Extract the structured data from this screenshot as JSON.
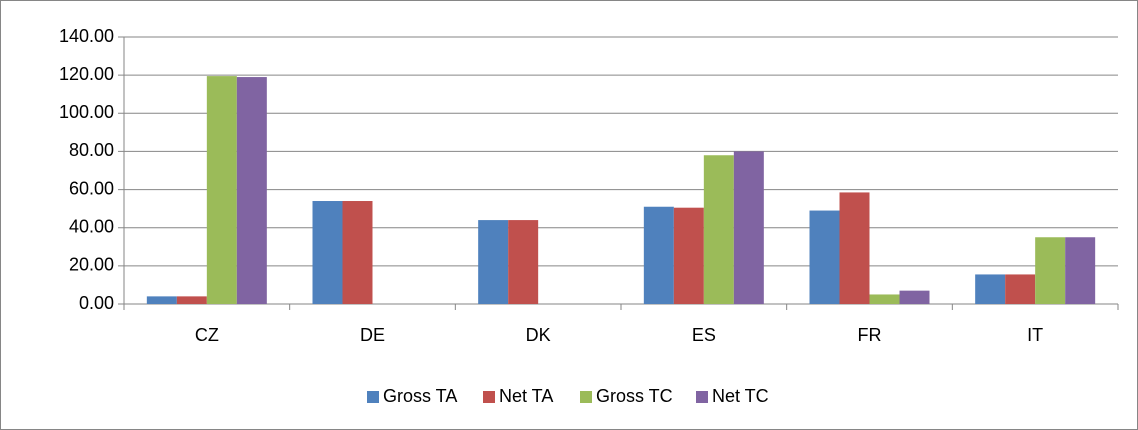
{
  "chart_data": {
    "type": "bar",
    "categories": [
      "CZ",
      "DE",
      "DK",
      "ES",
      "FR",
      "IT"
    ],
    "series": [
      {
        "name": "Gross TA",
        "color": "#4f81bd",
        "values": [
          4,
          54,
          44,
          51,
          49,
          15.5
        ]
      },
      {
        "name": "Net TA",
        "color": "#c0504d",
        "values": [
          4,
          54,
          44,
          50.5,
          58.5,
          15.5
        ]
      },
      {
        "name": "Gross TC",
        "color": "#9bbb59",
        "values": [
          119.5,
          null,
          null,
          78,
          5,
          35
        ]
      },
      {
        "name": "Net TC",
        "color": "#8064a2",
        "values": [
          119,
          null,
          null,
          80,
          7,
          35
        ]
      }
    ],
    "ylim": [
      0,
      140
    ],
    "yticks": [
      {
        "value": 0,
        "label": "0.00"
      },
      {
        "value": 20,
        "label": "20.00"
      },
      {
        "value": 40,
        "label": "40.00"
      },
      {
        "value": 60,
        "label": "60.00"
      },
      {
        "value": 80,
        "label": "80.00"
      },
      {
        "value": 100,
        "label": "100.00"
      },
      {
        "value": 120,
        "label": "120.00"
      },
      {
        "value": 140,
        "label": "140.00"
      }
    ],
    "grid": true,
    "legend": "bottom"
  }
}
